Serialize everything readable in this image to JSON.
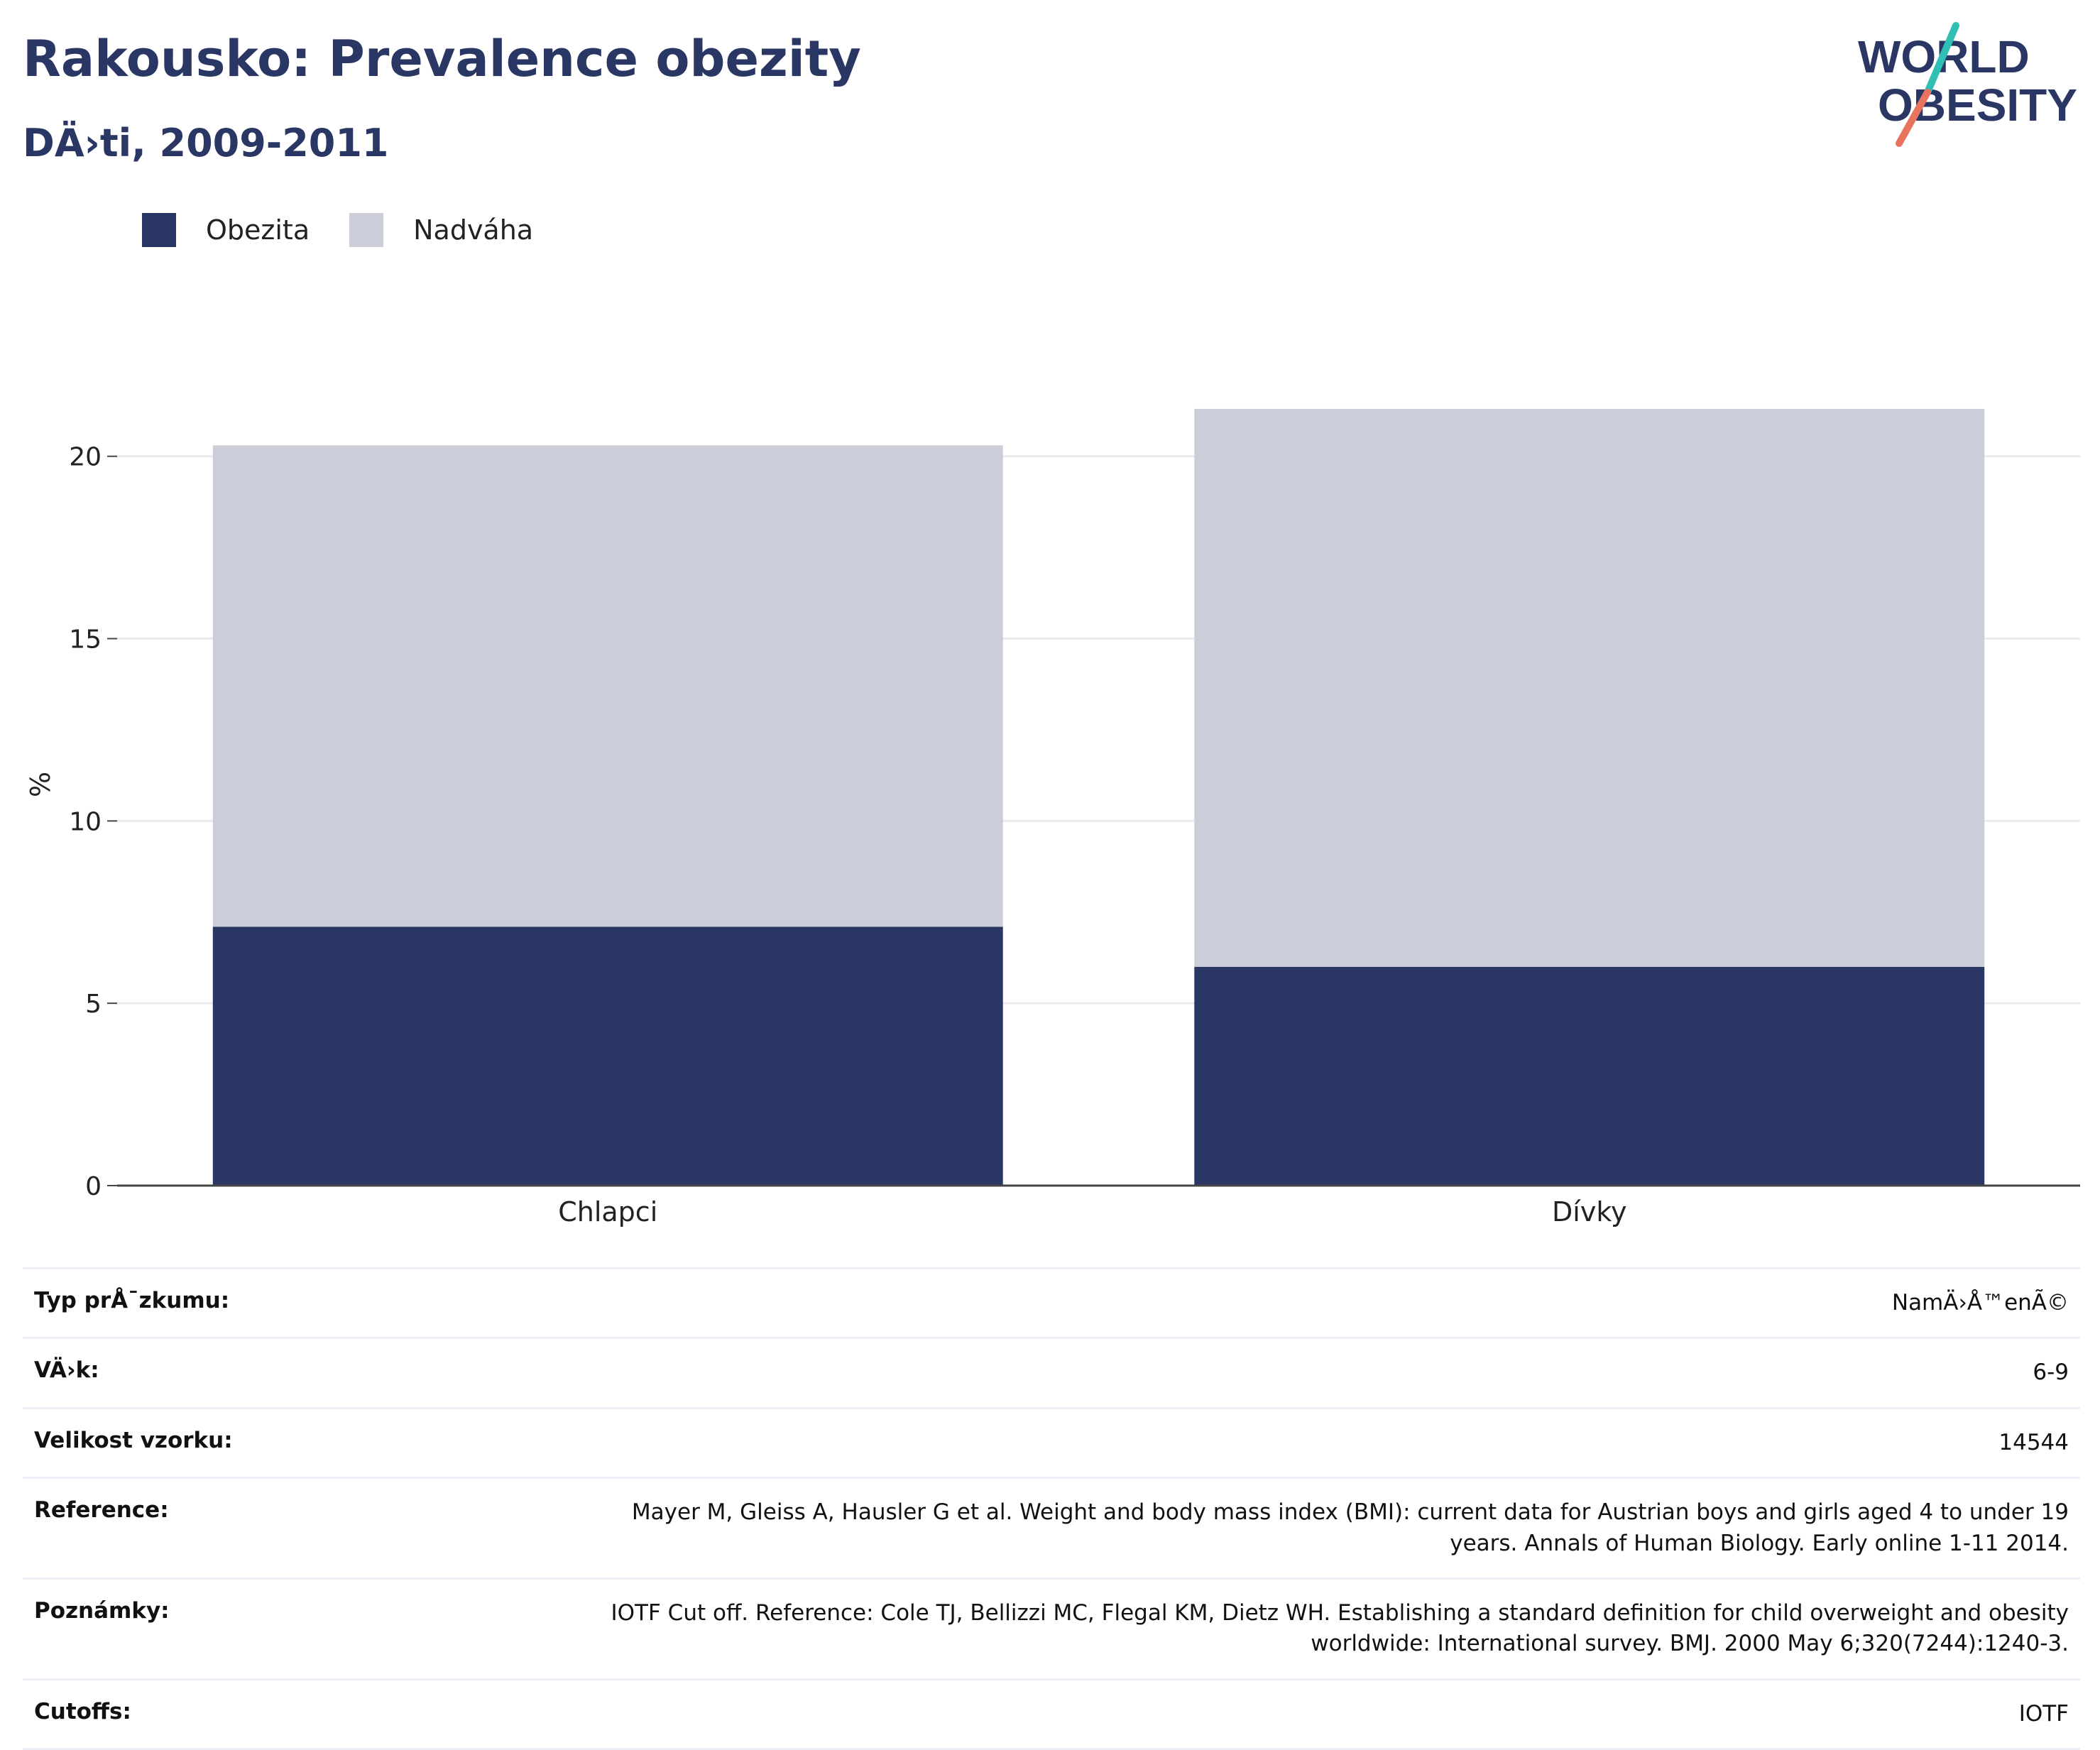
{
  "header": {
    "title": "Rakousko: Prevalence obezity",
    "subtitle": "DÄ›ti, 2009-2011",
    "logo_line1": "WORLD",
    "logo_line2": "OBESITY"
  },
  "colors": {
    "obesity": "#2a3663",
    "overweight": "#cbcdd9",
    "title": "#2a3663",
    "logo_teal": "#2fbfb5",
    "logo_coral": "#e8735f"
  },
  "chart_data": {
    "type": "bar",
    "stacked": true,
    "categories": [
      "Chlapci",
      "Dívky"
    ],
    "series": [
      {
        "name": "Obezita",
        "values": [
          7.1,
          6.0
        ]
      },
      {
        "name": "Nadváha",
        "values": [
          13.2,
          15.3
        ]
      }
    ],
    "title": "Rakousko: Prevalence obezity",
    "subtitle": "DÄ›ti, 2009-2011",
    "xlabel": "",
    "ylabel": "%",
    "ylim": [
      0,
      22
    ],
    "yticks": [
      0,
      5,
      10,
      15,
      20
    ],
    "grid": true,
    "legend_position": "top-left"
  },
  "meta": [
    {
      "key": "Typ prÅ¯zkumu:",
      "value": "NamÄ›Å™enÃ©"
    },
    {
      "key": "VÄ›k:",
      "value": "6-9"
    },
    {
      "key": "Velikost vzorku:",
      "value": "14544"
    },
    {
      "key": "Reference:",
      "value": "Mayer M, Gleiss A, Hausler G et al. Weight and body mass index (BMI): current data for Austrian boys and girls aged 4 to under 19 years. Annals of Human Biology. Early online 1-11 2014."
    },
    {
      "key": "Poznámky:",
      "value": "IOTF Cut off. Reference: Cole TJ, Bellizzi MC, Flegal KM, Dietz WH. Establishing a standard definition for child overweight and obesity worldwide: International survey. BMJ. 2000 May 6;320(7244):1240-3."
    },
    {
      "key": "Cutoffs:",
      "value": "IOTF"
    }
  ]
}
